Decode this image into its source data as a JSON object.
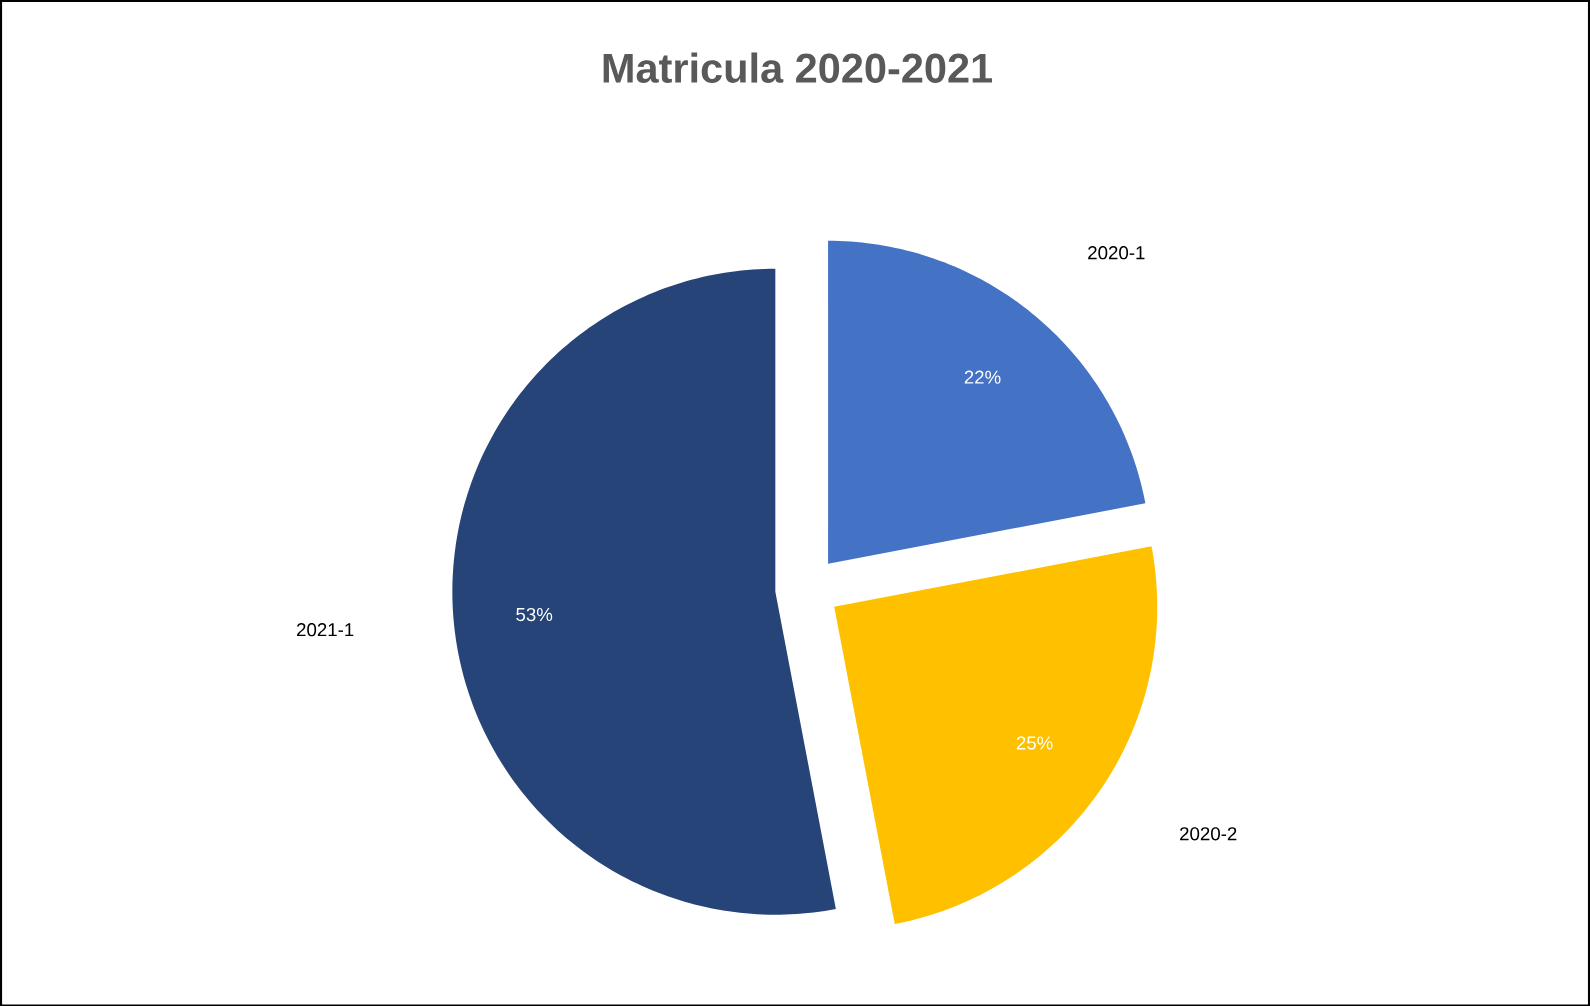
{
  "chart_data": {
    "type": "pie",
    "title": "Matricula 2020-2021",
    "categories": [
      "2020-1",
      "2020-2",
      "2021-1"
    ],
    "values": [
      22,
      25,
      53
    ],
    "value_labels": [
      "22%",
      "25%",
      "53%"
    ],
    "colors": [
      "#4472c4",
      "#ffc000",
      "#264478"
    ]
  }
}
